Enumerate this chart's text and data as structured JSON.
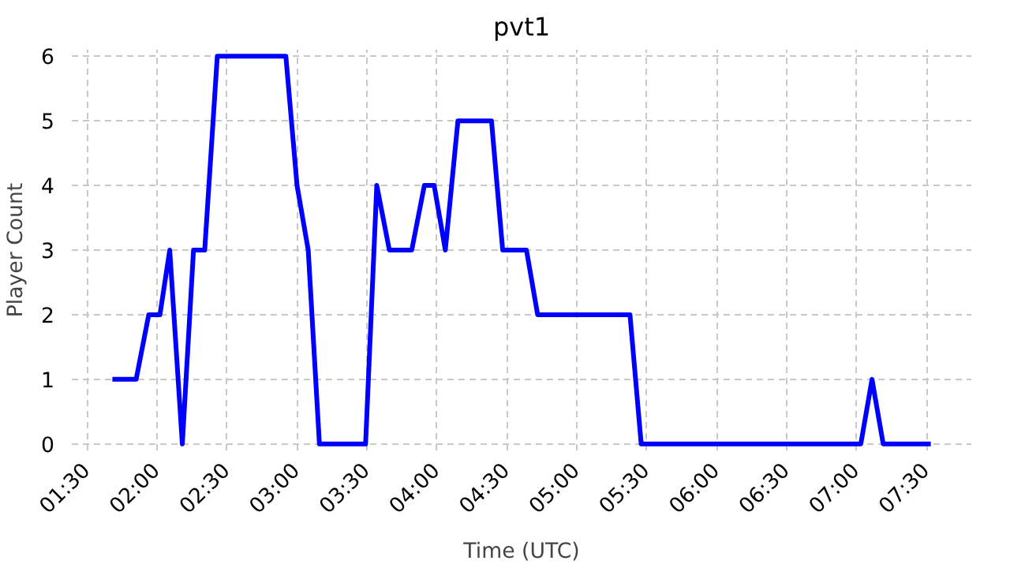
{
  "chart_data": {
    "type": "line",
    "title": "pvt1",
    "xlabel": "Time (UTC)",
    "ylabel": "Player Count",
    "x": [
      1.68,
      1.85,
      1.94,
      2.02,
      2.09,
      2.18,
      2.26,
      2.34,
      2.43,
      2.92,
      3.0,
      3.08,
      3.16,
      3.49,
      3.57,
      3.66,
      3.82,
      3.91,
      3.98,
      4.06,
      4.15,
      4.39,
      4.47,
      4.64,
      4.72,
      5.38,
      5.46,
      7.03,
      7.11,
      7.19,
      7.53
    ],
    "series": [
      {
        "color": "#0000ff",
        "values": [
          1,
          1,
          2,
          2,
          3,
          0,
          3,
          3,
          6,
          6,
          4,
          3,
          0,
          0,
          4,
          3,
          3,
          4,
          4,
          3,
          5,
          5,
          3,
          3,
          2,
          2,
          0,
          0,
          1,
          0,
          0
        ]
      }
    ],
    "xlim": [
      1.39,
      7.82
    ],
    "ylim": [
      -0.1,
      6.1
    ],
    "xticks": [
      {
        "value": 1.5,
        "label": "01:30"
      },
      {
        "value": 2,
        "label": "02:00"
      },
      {
        "value": 2.5,
        "label": "02:30"
      },
      {
        "value": 3,
        "label": "03:00"
      },
      {
        "value": 3.5,
        "label": "03:30"
      },
      {
        "value": 4,
        "label": "04:00"
      },
      {
        "value": 4.5,
        "label": "04:30"
      },
      {
        "value": 5,
        "label": "05:00"
      },
      {
        "value": 5.5,
        "label": "05:30"
      },
      {
        "value": 6,
        "label": "06:00"
      },
      {
        "value": 6.5,
        "label": "06:30"
      },
      {
        "value": 7,
        "label": "07:00"
      },
      {
        "value": 7.5,
        "label": "07:30"
      }
    ],
    "yticks": [
      0,
      1,
      2,
      3,
      4,
      5,
      6
    ],
    "grid": true,
    "marker": "none",
    "line_style": "solid"
  }
}
